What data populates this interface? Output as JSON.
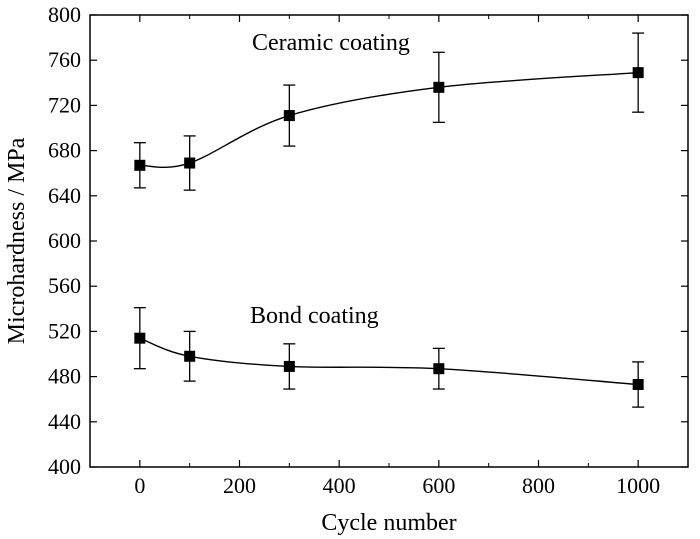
{
  "chart_data": {
    "type": "line",
    "title": "",
    "xlabel": "Cycle number",
    "ylabel": "Microhardness / MPa",
    "xlim": [
      -100,
      1100
    ],
    "ylim": [
      400,
      800
    ],
    "xticks": [
      0,
      200,
      400,
      600,
      800,
      1000
    ],
    "yticks": [
      400,
      440,
      480,
      520,
      560,
      600,
      640,
      680,
      720,
      760,
      800
    ],
    "grid": false,
    "legend": "none",
    "series": [
      {
        "name": "Ceramic coating",
        "x": [
          0,
          100,
          300,
          600,
          1000
        ],
        "y": [
          667,
          669,
          711,
          736,
          749
        ],
        "error": [
          20,
          24,
          27,
          31,
          35
        ]
      },
      {
        "name": "Bond coating",
        "x": [
          0,
          100,
          300,
          600,
          1000
        ],
        "y": [
          514,
          498,
          489,
          487,
          473
        ],
        "error": [
          27,
          22,
          20,
          18,
          20
        ]
      }
    ],
    "annotations": [
      "Ceramic coating",
      "Bond coating"
    ],
    "colors": {
      "line": "#000000",
      "marker": "#000000",
      "background": "#ffffff"
    }
  }
}
